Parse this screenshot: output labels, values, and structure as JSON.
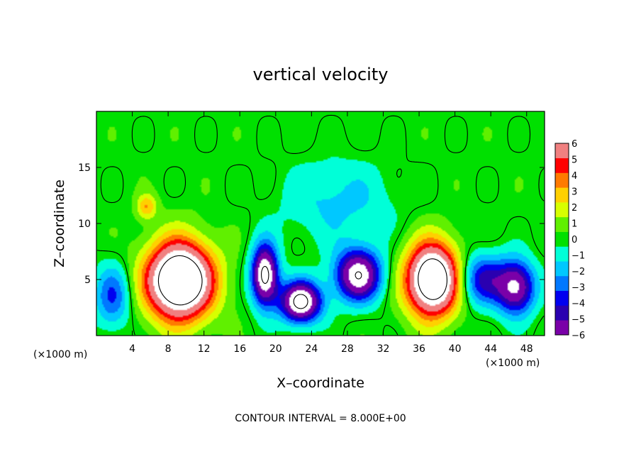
{
  "chart_data": {
    "type": "heatmap",
    "title": "vertical velocity",
    "xlabel": "X–coordinate",
    "ylabel": "Z–coordinate",
    "x_unit_left": "(×1000 m)",
    "x_unit_right": "(×1000 m)",
    "footer": "CONTOUR INTERVAL = 8.000E+00",
    "xlim": [
      0,
      50
    ],
    "ylim": [
      0,
      20
    ],
    "xticks": [
      4,
      8,
      12,
      16,
      20,
      24,
      28,
      32,
      36,
      40,
      44,
      48
    ],
    "yticks": [
      5,
      10,
      15
    ],
    "colorbar": {
      "vmin": -6,
      "vmax": 6,
      "ticks": [
        6,
        5,
        4,
        3,
        2,
        1,
        0,
        -1,
        -2,
        -3,
        -4,
        -5,
        -6
      ],
      "colors": [
        "#7a00a8",
        "#2a00b0",
        "#0000f0",
        "#0078ff",
        "#00c8ff",
        "#00ffd8",
        "#00e000",
        "#60f000",
        "#d8ff00",
        "#ffd000",
        "#ff7a00",
        "#ff0000",
        "#f08080"
      ]
    },
    "features": [
      {
        "kind": "updraft",
        "x": 9.3,
        "z": 4.9,
        "rx": 4.0,
        "rz": 3.7,
        "peak": 12
      },
      {
        "kind": "updraft",
        "x": 37.5,
        "z": 5.0,
        "rx": 3.2,
        "rz": 3.5,
        "peak": 11
      },
      {
        "kind": "downdraft",
        "x": 18.8,
        "z": 5.4,
        "rx": 1.6,
        "rz": 2.9,
        "peak": -9
      },
      {
        "kind": "downdraft",
        "x": 22.8,
        "z": 3.0,
        "rx": 2.5,
        "rz": 2.0,
        "peak": -9
      },
      {
        "kind": "downdraft",
        "x": 29.2,
        "z": 5.4,
        "rx": 2.8,
        "rz": 2.5,
        "peak": -8
      },
      {
        "kind": "downdraft",
        "x": 46.8,
        "z": 4.3,
        "rx": 2.3,
        "rz": 2.6,
        "peak": -7
      },
      {
        "kind": "downdraft",
        "x": 1.8,
        "z": 3.5,
        "rx": 2.2,
        "rz": 3.0,
        "peak": -3.5
      },
      {
        "kind": "downdraft",
        "x": 43.0,
        "z": 5.0,
        "rx": 2.8,
        "rz": 2.5,
        "peak": -4.5
      },
      {
        "kind": "downdraft",
        "x": 27.0,
        "z": 12.0,
        "rx": 7.0,
        "rz": 4.0,
        "peak": -1.8
      },
      {
        "kind": "updraft",
        "x": 5.6,
        "z": 11.5,
        "rx": 1.2,
        "rz": 1.2,
        "peak": 3
      }
    ]
  }
}
